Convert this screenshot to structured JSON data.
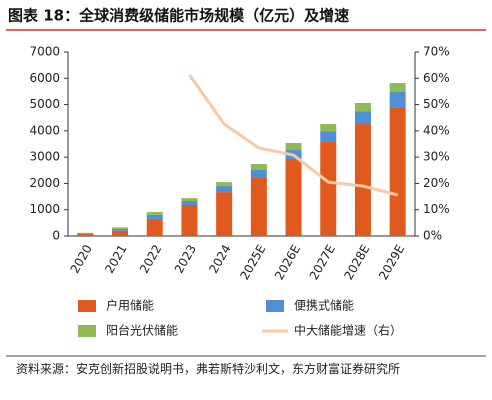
{
  "chart_data": {
    "type": "bar+line",
    "title": "图表 18：全球消费级储能市场规模（亿元）及增速",
    "categories": [
      "2020",
      "2021",
      "2022",
      "2023",
      "2024",
      "2025E",
      "2026E",
      "2027E",
      "2028E",
      "2029E"
    ],
    "series": [
      {
        "name": "户用储能",
        "color": "#e05a1e",
        "type": "bar",
        "values": [
          80,
          200,
          650,
          1180,
          1670,
          2240,
          2930,
          3610,
          4260,
          4900
        ]
      },
      {
        "name": "便携式储能",
        "color": "#4f8fd6",
        "type": "bar",
        "values": [
          30,
          70,
          160,
          150,
          230,
          270,
          340,
          380,
          490,
          580
        ]
      },
      {
        "name": "阳台光伏储能",
        "color": "#8fba55",
        "type": "bar",
        "values": [
          10,
          60,
          100,
          110,
          150,
          230,
          270,
          270,
          310,
          340
        ]
      },
      {
        "name": "中大储能增速（右）",
        "color": "#f8c9a4",
        "type": "line",
        "axis": "y2",
        "values": [
          null,
          null,
          null,
          61.3,
          42.6,
          33.5,
          30.8,
          20.5,
          19,
          15.6
        ]
      }
    ],
    "ylim": [
      0,
      7000
    ],
    "yticks": [
      0,
      1000,
      2000,
      3000,
      4000,
      5000,
      6000,
      7000
    ],
    "y2lim": [
      0,
      70
    ],
    "y2ticks": [
      {
        "value": 0,
        "label": "0%"
      },
      {
        "value": 10,
        "label": "10%"
      },
      {
        "value": 20,
        "label": "20%"
      },
      {
        "value": 30,
        "label": "30%"
      },
      {
        "value": 40,
        "label": "40%"
      },
      {
        "value": 50,
        "label": "50%"
      },
      {
        "value": 60,
        "label": "60%"
      },
      {
        "value": 70,
        "label": "70%"
      }
    ],
    "source": "资料来源：安克创新招股说明书，弗若斯特沙利文，东方财富证券研究所"
  }
}
